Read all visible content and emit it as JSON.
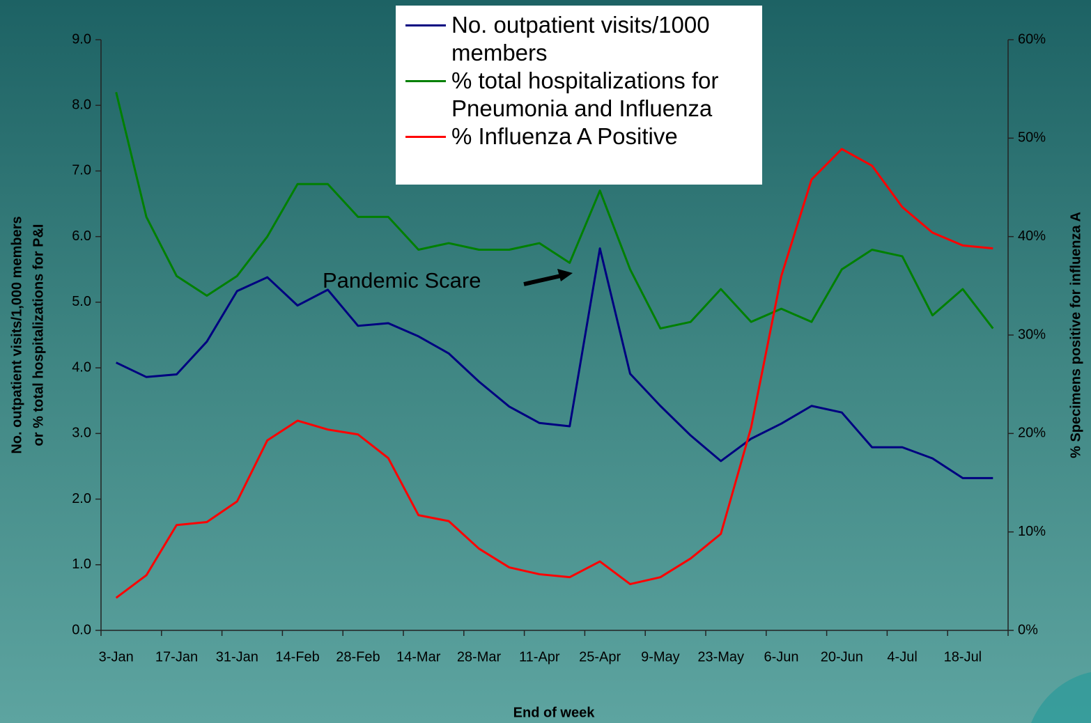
{
  "chart_data": {
    "type": "line",
    "x_label": "End of week",
    "y_label": [
      "No. outpatient visits/1,000 members",
      "or % total hospitalizations for P&I"
    ],
    "y2_label": "% Specimens positive for influenza A",
    "annotations": [
      {
        "text": "Pandemic Scare"
      }
    ],
    "categories": [
      "3-Jan",
      null,
      "17-Jan",
      null,
      "31-Jan",
      null,
      "14-Feb",
      null,
      "28-Feb",
      null,
      "14-Mar",
      null,
      "28-Mar",
      null,
      "11-Apr",
      null,
      "25-Apr",
      null,
      "9-May",
      null,
      "23-May",
      null,
      "6-Jun",
      null,
      "20-Jun",
      null,
      "4-Jul",
      null,
      "18-Jul",
      null
    ],
    "series": [
      {
        "name": "No. outpatient visits/1000 members",
        "color": "#000080",
        "values": [
          4.08,
          3.86,
          3.9,
          4.4,
          5.17,
          5.38,
          4.95,
          5.19,
          4.64,
          4.68,
          4.48,
          4.22,
          3.79,
          3.41,
          3.16,
          3.11,
          5.82,
          3.91,
          3.42,
          2.97,
          2.58,
          2.92,
          3.15,
          3.42,
          3.32,
          2.79,
          2.79,
          2.62,
          2.32,
          2.32
        ]
      },
      {
        "name": "% total hospitalizations for Pneumonia and Influenza",
        "color": "#008000",
        "values": [
          8.2,
          6.3,
          5.4,
          5.1,
          5.4,
          6.0,
          6.8,
          6.8,
          6.3,
          6.3,
          5.8,
          5.9,
          5.8,
          5.8,
          5.9,
          5.6,
          6.7,
          5.5,
          4.6,
          4.7,
          5.2,
          4.7,
          4.9,
          4.7,
          5.5,
          5.8,
          5.7,
          4.8,
          5.2,
          4.6
        ]
      },
      {
        "name": "% Influenza A Positive",
        "color": "#ff0000",
        "axis": "y2",
        "values": [
          3.3,
          5.6,
          10.7,
          11.0,
          13.1,
          19.3,
          21.3,
          20.4,
          19.9,
          17.5,
          11.7,
          11.1,
          8.3,
          6.4,
          5.7,
          5.4,
          7.0,
          4.7,
          5.4,
          7.3,
          9.8,
          20.6,
          36.0,
          45.8,
          48.9,
          47.2,
          43.0,
          40.4,
          39.1,
          38.8
        ]
      }
    ],
    "ylim": [
      0,
      9
    ],
    "yticks": [
      {
        "value": 0,
        "label": "0.0"
      },
      {
        "value": 1,
        "label": "1.0"
      },
      {
        "value": 2,
        "label": "2.0"
      },
      {
        "value": 3,
        "label": "3.0"
      },
      {
        "value": 4,
        "label": "4.0"
      },
      {
        "value": 5,
        "label": "5.0"
      },
      {
        "value": 6,
        "label": "6.0"
      },
      {
        "value": 7,
        "label": "7.0"
      },
      {
        "value": 8,
        "label": "8.0"
      },
      {
        "value": 9,
        "label": "9.0"
      }
    ],
    "y2lim": [
      0,
      60
    ],
    "y2ticks": [
      {
        "value": 0,
        "label": "0%"
      },
      {
        "value": 10,
        "label": "10%"
      },
      {
        "value": 20,
        "label": "20%"
      },
      {
        "value": 30,
        "label": "30%"
      },
      {
        "value": 40,
        "label": "40%"
      },
      {
        "value": 50,
        "label": "50%"
      },
      {
        "value": 60,
        "label": "60%"
      }
    ],
    "grid": false
  }
}
